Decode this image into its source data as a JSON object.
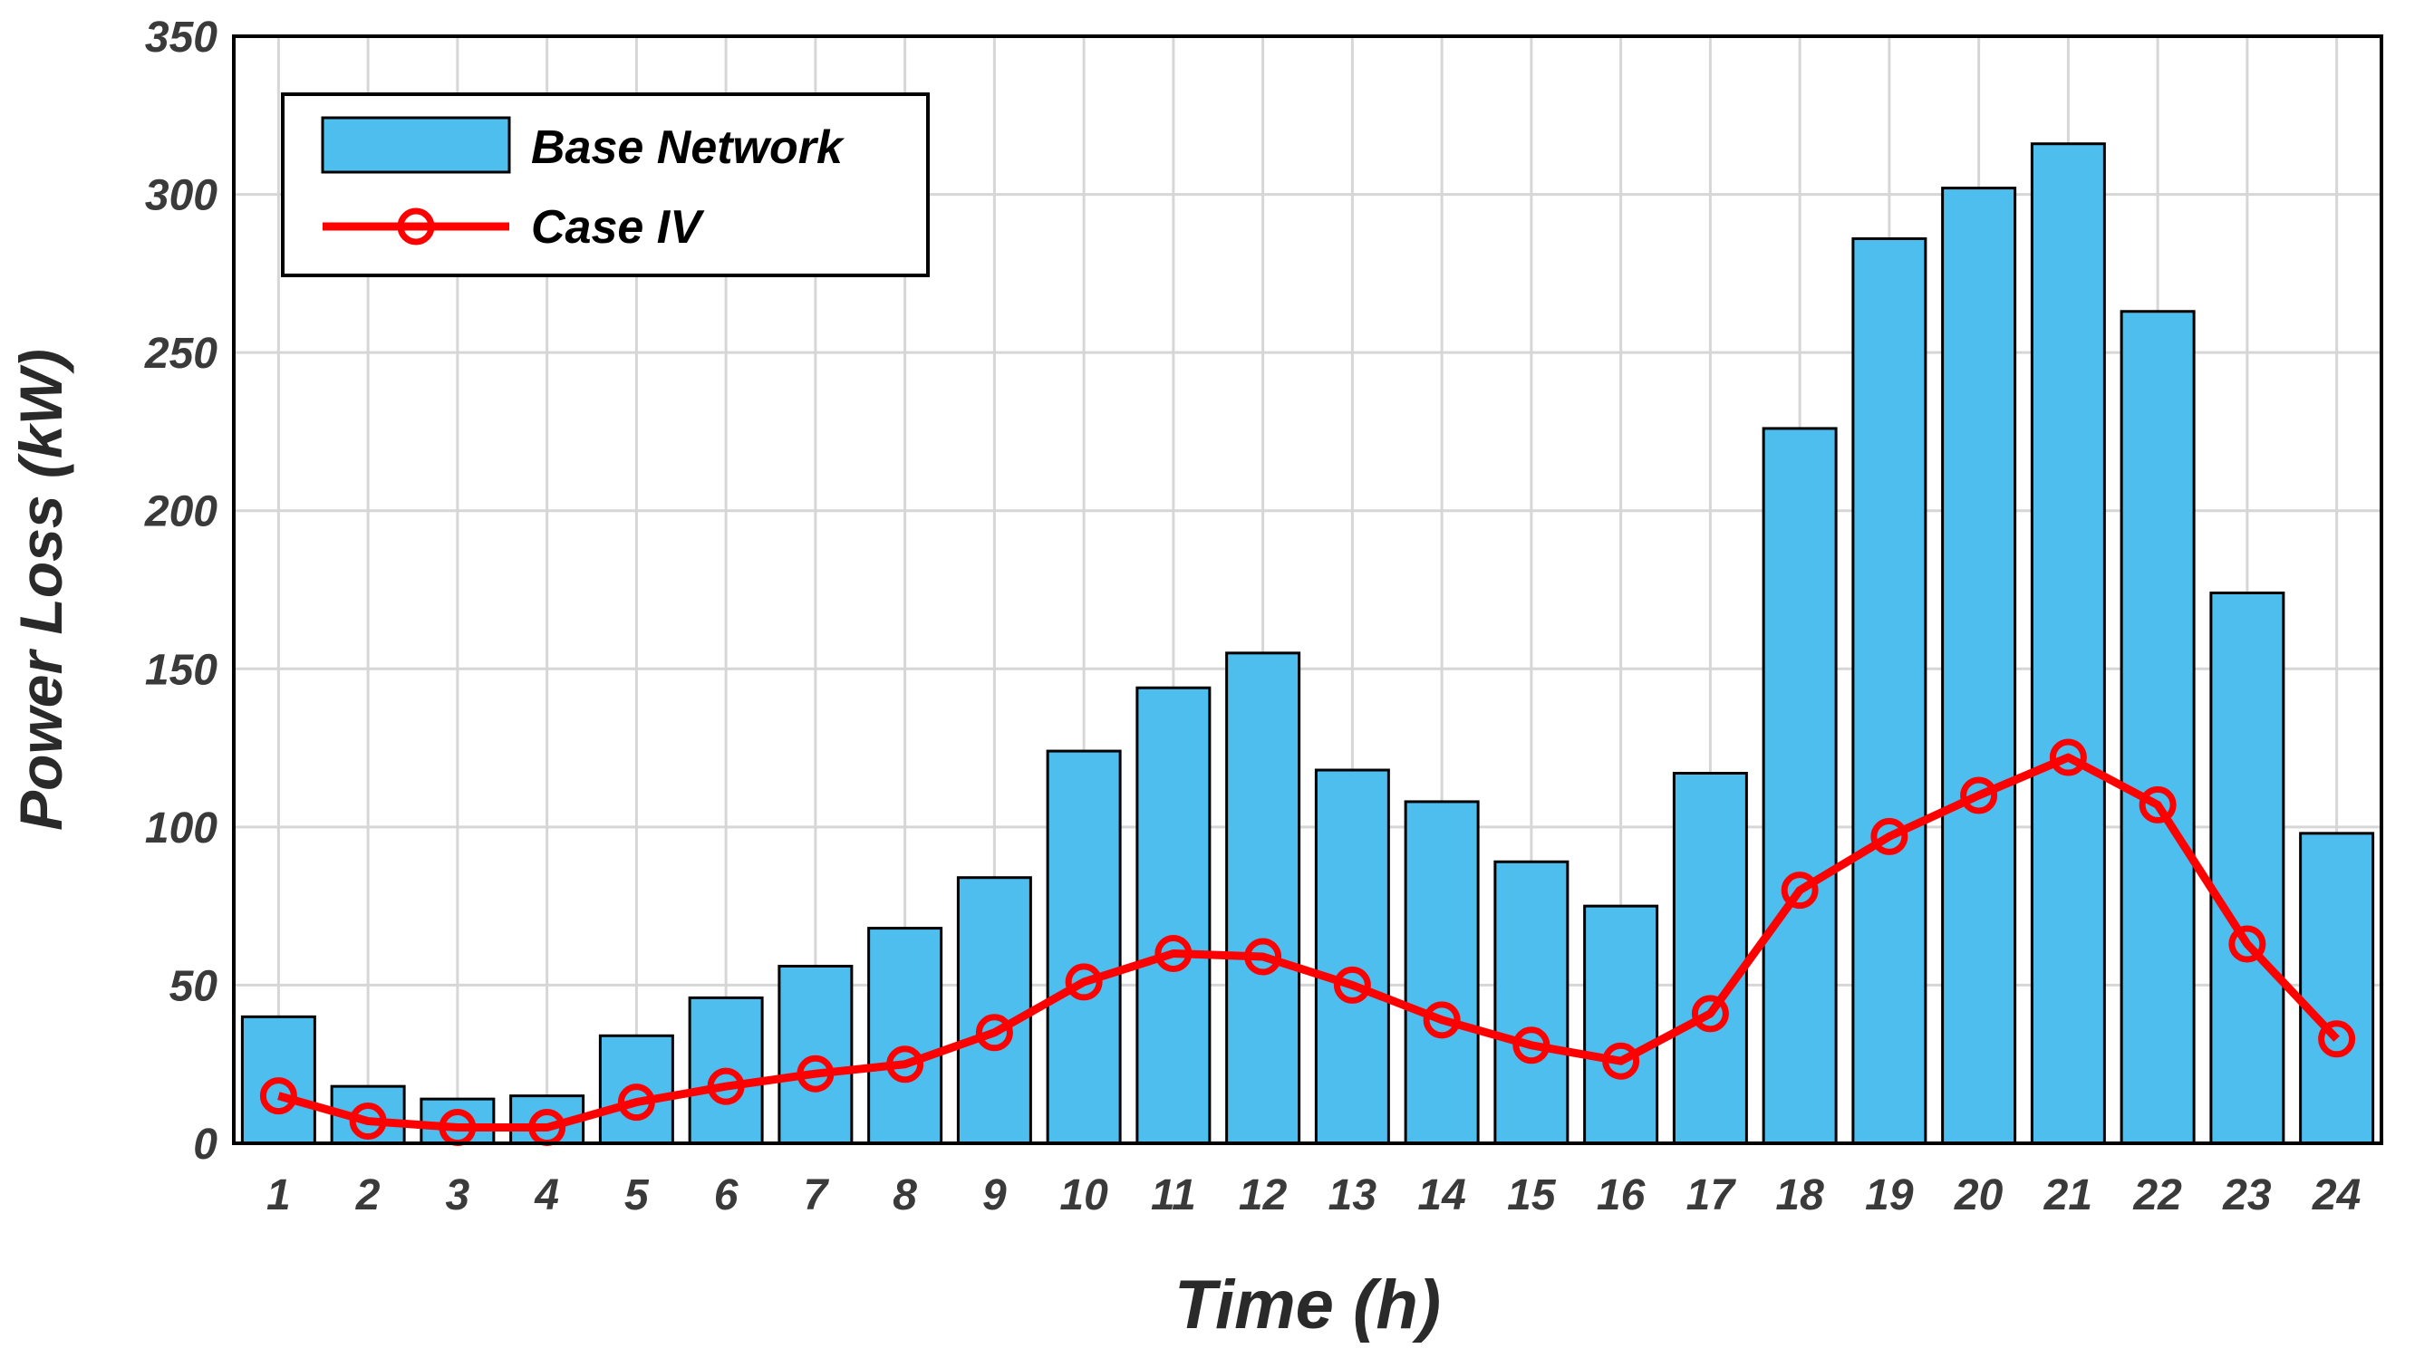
{
  "chart_data": {
    "type": "bar",
    "title": "",
    "xlabel": "Time (h)",
    "ylabel": "Power Loss (kW)",
    "categories": [
      "1",
      "2",
      "3",
      "4",
      "5",
      "6",
      "7",
      "8",
      "9",
      "10",
      "11",
      "12",
      "13",
      "14",
      "15",
      "16",
      "17",
      "18",
      "19",
      "20",
      "21",
      "22",
      "23",
      "24"
    ],
    "ylim": [
      0,
      350
    ],
    "yticks": [
      "0",
      "50",
      "100",
      "150",
      "200",
      "250",
      "300",
      "350"
    ],
    "grid": true,
    "legend_position": "top-left",
    "series": [
      {
        "name": "Base Network",
        "kind": "bar",
        "color": "#4DBEEE",
        "values": [
          40,
          18,
          14,
          15,
          34,
          46,
          56,
          68,
          84,
          124,
          144,
          155,
          118,
          108,
          89,
          75,
          117,
          226,
          286,
          302,
          316,
          263,
          174,
          98
        ]
      },
      {
        "name": "Case IV",
        "kind": "line",
        "marker": "circle",
        "color": "#FF0000",
        "values": [
          15,
          7,
          5,
          5,
          13,
          18,
          22,
          25,
          35,
          51,
          60,
          59,
          50,
          39,
          31,
          26,
          41,
          80,
          97,
          110,
          122,
          107,
          63,
          33
        ]
      }
    ]
  }
}
